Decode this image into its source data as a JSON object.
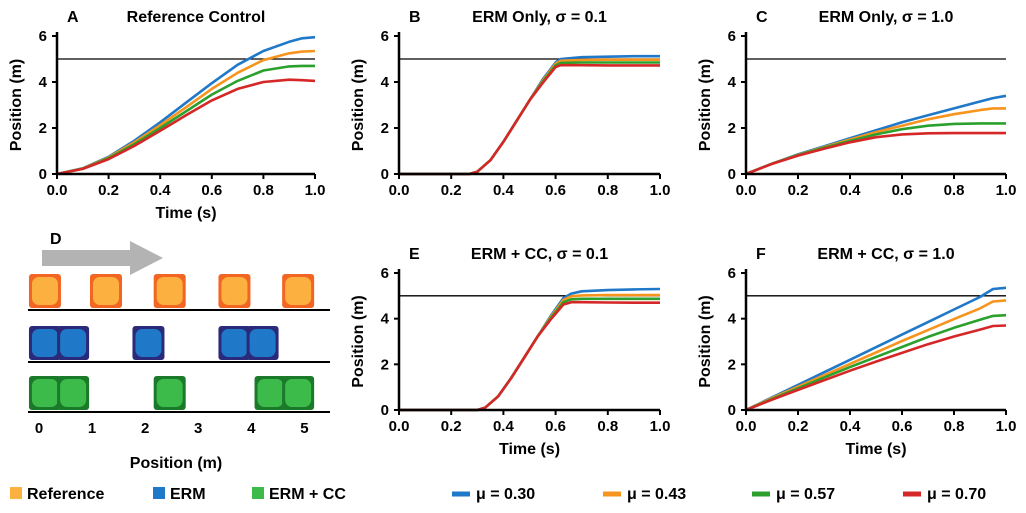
{
  "chart_data": [
    {
      "panel": "A",
      "title": "Reference Control",
      "type": "line",
      "xlabel": "Time (s)",
      "ylabel": "Position (m)",
      "xlim": [
        0,
        1
      ],
      "ylim": [
        0,
        6
      ],
      "xticks": [
        "0.0",
        "0.2",
        "0.4",
        "0.6",
        "0.8",
        "1.0"
      ],
      "yticks": [
        "0",
        "2",
        "4",
        "6"
      ],
      "reference_line": 5,
      "series": [
        {
          "ref": 0,
          "x": [
            0,
            0.1,
            0.2,
            0.3,
            0.4,
            0.5,
            0.6,
            0.7,
            0.8,
            0.9,
            0.95,
            1.0
          ],
          "y": [
            0,
            0.25,
            0.75,
            1.45,
            2.25,
            3.1,
            3.95,
            4.75,
            5.35,
            5.75,
            5.9,
            5.95
          ]
        },
        {
          "ref": 1,
          "x": [
            0,
            0.1,
            0.2,
            0.3,
            0.4,
            0.5,
            0.6,
            0.7,
            0.8,
            0.9,
            0.95,
            1.0
          ],
          "y": [
            0,
            0.24,
            0.72,
            1.38,
            2.12,
            2.9,
            3.7,
            4.4,
            4.95,
            5.25,
            5.32,
            5.35
          ]
        },
        {
          "ref": 2,
          "x": [
            0,
            0.1,
            0.2,
            0.3,
            0.4,
            0.5,
            0.6,
            0.7,
            0.8,
            0.9,
            0.95,
            1.0
          ],
          "y": [
            0,
            0.23,
            0.69,
            1.3,
            2.0,
            2.72,
            3.45,
            4.05,
            4.5,
            4.68,
            4.7,
            4.7
          ]
        },
        {
          "ref": 3,
          "x": [
            0,
            0.1,
            0.2,
            0.3,
            0.4,
            0.5,
            0.6,
            0.7,
            0.8,
            0.9,
            0.95,
            1.0
          ],
          "y": [
            0,
            0.22,
            0.65,
            1.22,
            1.88,
            2.55,
            3.2,
            3.7,
            4.0,
            4.1,
            4.08,
            4.05
          ]
        }
      ]
    },
    {
      "panel": "B",
      "title": "ERM Only, σ = 0.1",
      "type": "line",
      "xlabel": "",
      "ylabel": "Position (m)",
      "xlim": [
        0,
        1
      ],
      "ylim": [
        0,
        6
      ],
      "xticks": [
        "0.0",
        "0.2",
        "0.4",
        "0.6",
        "0.8",
        "1.0"
      ],
      "yticks": [
        "0",
        "2",
        "4",
        "6"
      ],
      "reference_line": 5,
      "series": [
        {
          "ref": 0,
          "x": [
            0,
            0.27,
            0.3,
            0.35,
            0.4,
            0.45,
            0.5,
            0.55,
            0.6,
            0.62,
            0.7,
            0.8,
            0.9,
            1.0
          ],
          "y": [
            0,
            0,
            0.1,
            0.6,
            1.4,
            2.3,
            3.2,
            4.1,
            4.85,
            5.0,
            5.08,
            5.1,
            5.12,
            5.12
          ]
        },
        {
          "ref": 1,
          "x": [
            0,
            0.27,
            0.3,
            0.35,
            0.4,
            0.45,
            0.5,
            0.55,
            0.6,
            0.62,
            0.7,
            0.8,
            0.9,
            1.0
          ],
          "y": [
            0,
            0,
            0.1,
            0.6,
            1.4,
            2.3,
            3.2,
            4.05,
            4.8,
            4.92,
            4.96,
            4.97,
            4.97,
            4.97
          ]
        },
        {
          "ref": 2,
          "x": [
            0,
            0.27,
            0.3,
            0.35,
            0.4,
            0.45,
            0.5,
            0.55,
            0.6,
            0.62,
            0.7,
            0.8,
            0.9,
            1.0
          ],
          "y": [
            0,
            0,
            0.1,
            0.6,
            1.4,
            2.3,
            3.2,
            4.0,
            4.72,
            4.83,
            4.85,
            4.85,
            4.85,
            4.85
          ]
        },
        {
          "ref": 3,
          "x": [
            0,
            0.27,
            0.3,
            0.35,
            0.4,
            0.45,
            0.5,
            0.55,
            0.6,
            0.62,
            0.7,
            0.8,
            0.9,
            1.0
          ],
          "y": [
            0,
            0,
            0.1,
            0.6,
            1.4,
            2.3,
            3.2,
            3.95,
            4.65,
            4.73,
            4.73,
            4.72,
            4.72,
            4.72
          ]
        }
      ]
    },
    {
      "panel": "C",
      "title": "ERM Only, σ = 1.0",
      "type": "line",
      "xlabel": "",
      "ylabel": "Position (m)",
      "xlim": [
        0,
        1
      ],
      "ylim": [
        0,
        6
      ],
      "xticks": [
        "0.0",
        "0.2",
        "0.4",
        "0.6",
        "0.8",
        "1.0"
      ],
      "yticks": [
        "0",
        "2",
        "4",
        "6"
      ],
      "reference_line": 5,
      "series": [
        {
          "ref": 0,
          "x": [
            0,
            0.1,
            0.2,
            0.3,
            0.4,
            0.5,
            0.6,
            0.7,
            0.8,
            0.9,
            0.95,
            1.0
          ],
          "y": [
            0,
            0.45,
            0.85,
            1.2,
            1.55,
            1.9,
            2.25,
            2.55,
            2.85,
            3.15,
            3.3,
            3.4
          ]
        },
        {
          "ref": 1,
          "x": [
            0,
            0.1,
            0.2,
            0.3,
            0.4,
            0.5,
            0.6,
            0.7,
            0.8,
            0.9,
            0.95,
            1.0
          ],
          "y": [
            0,
            0.45,
            0.83,
            1.17,
            1.5,
            1.82,
            2.1,
            2.38,
            2.6,
            2.78,
            2.85,
            2.85
          ]
        },
        {
          "ref": 2,
          "x": [
            0,
            0.1,
            0.2,
            0.3,
            0.4,
            0.5,
            0.6,
            0.7,
            0.8,
            0.9,
            0.95,
            1.0
          ],
          "y": [
            0,
            0.45,
            0.82,
            1.14,
            1.44,
            1.72,
            1.95,
            2.1,
            2.18,
            2.2,
            2.2,
            2.2
          ]
        },
        {
          "ref": 3,
          "x": [
            0,
            0.1,
            0.2,
            0.3,
            0.4,
            0.5,
            0.6,
            0.7,
            0.8,
            0.9,
            0.95,
            1.0
          ],
          "y": [
            0,
            0.44,
            0.8,
            1.1,
            1.38,
            1.6,
            1.72,
            1.77,
            1.78,
            1.78,
            1.78,
            1.78
          ]
        }
      ]
    },
    {
      "panel": "E",
      "title": "ERM + CC, σ = 0.1",
      "type": "line",
      "xlabel": "Time (s)",
      "ylabel": "Position (m)",
      "xlim": [
        0,
        1
      ],
      "ylim": [
        0,
        6
      ],
      "xticks": [
        "0.0",
        "0.2",
        "0.4",
        "0.6",
        "0.8",
        "1.0"
      ],
      "yticks": [
        "0",
        "2",
        "4",
        "6"
      ],
      "reference_line": 5,
      "series": [
        {
          "ref": 0,
          "x": [
            0,
            0.3,
            0.33,
            0.38,
            0.43,
            0.48,
            0.53,
            0.58,
            0.63,
            0.66,
            0.7,
            0.8,
            0.9,
            1.0
          ],
          "y": [
            0,
            0,
            0.1,
            0.6,
            1.4,
            2.3,
            3.2,
            4.1,
            4.9,
            5.1,
            5.2,
            5.25,
            5.28,
            5.3
          ]
        },
        {
          "ref": 1,
          "x": [
            0,
            0.3,
            0.33,
            0.38,
            0.43,
            0.48,
            0.53,
            0.58,
            0.63,
            0.66,
            0.7,
            0.8,
            0.9,
            1.0
          ],
          "y": [
            0,
            0,
            0.1,
            0.6,
            1.4,
            2.3,
            3.2,
            4.05,
            4.82,
            4.98,
            5.02,
            5.03,
            5.03,
            5.03
          ]
        },
        {
          "ref": 2,
          "x": [
            0,
            0.3,
            0.33,
            0.38,
            0.43,
            0.48,
            0.53,
            0.58,
            0.63,
            0.66,
            0.7,
            0.8,
            0.9,
            1.0
          ],
          "y": [
            0,
            0,
            0.1,
            0.6,
            1.4,
            2.3,
            3.2,
            4.0,
            4.72,
            4.85,
            4.87,
            4.87,
            4.87,
            4.87
          ]
        },
        {
          "ref": 3,
          "x": [
            0,
            0.3,
            0.33,
            0.38,
            0.43,
            0.48,
            0.53,
            0.58,
            0.63,
            0.66,
            0.7,
            0.8,
            0.9,
            1.0
          ],
          "y": [
            0,
            0,
            0.1,
            0.6,
            1.4,
            2.3,
            3.2,
            3.95,
            4.62,
            4.72,
            4.72,
            4.71,
            4.7,
            4.7
          ]
        }
      ]
    },
    {
      "panel": "F",
      "title": "ERM + CC, σ = 1.0",
      "type": "line",
      "xlabel": "Time (s)",
      "ylabel": "Position (m)",
      "xlim": [
        0,
        1
      ],
      "ylim": [
        0,
        6
      ],
      "xticks": [
        "0.0",
        "0.2",
        "0.4",
        "0.6",
        "0.8",
        "1.0"
      ],
      "yticks": [
        "0",
        "2",
        "4",
        "6"
      ],
      "reference_line": 5,
      "series": [
        {
          "ref": 0,
          "x": [
            0,
            0.1,
            0.2,
            0.3,
            0.4,
            0.5,
            0.6,
            0.7,
            0.8,
            0.9,
            0.95,
            1.0
          ],
          "y": [
            0,
            0.55,
            1.1,
            1.65,
            2.2,
            2.75,
            3.3,
            3.85,
            4.4,
            4.95,
            5.3,
            5.35
          ]
        },
        {
          "ref": 1,
          "x": [
            0,
            0.1,
            0.2,
            0.3,
            0.4,
            0.5,
            0.6,
            0.7,
            0.8,
            0.9,
            0.95,
            1.0
          ],
          "y": [
            0,
            0.52,
            1.02,
            1.52,
            2.02,
            2.52,
            3.02,
            3.5,
            3.98,
            4.45,
            4.75,
            4.8
          ]
        },
        {
          "ref": 2,
          "x": [
            0,
            0.1,
            0.2,
            0.3,
            0.4,
            0.5,
            0.6,
            0.7,
            0.8,
            0.9,
            0.95,
            1.0
          ],
          "y": [
            0,
            0.48,
            0.95,
            1.42,
            1.88,
            2.32,
            2.76,
            3.2,
            3.6,
            3.95,
            4.12,
            4.15
          ]
        },
        {
          "ref": 3,
          "x": [
            0,
            0.1,
            0.2,
            0.3,
            0.4,
            0.5,
            0.6,
            0.7,
            0.8,
            0.9,
            0.95,
            1.0
          ],
          "y": [
            0,
            0.45,
            0.88,
            1.3,
            1.72,
            2.12,
            2.5,
            2.88,
            3.22,
            3.52,
            3.68,
            3.7
          ]
        }
      ]
    }
  ],
  "mu_legend": [
    {
      "label": "μ = 0.30",
      "color": "#1f78c8"
    },
    {
      "label": "μ = 0.43",
      "color": "#f7941d"
    },
    {
      "label": "μ = 0.57",
      "color": "#2ca02c"
    },
    {
      "label": "μ = 0.70",
      "color": "#d62728"
    }
  ],
  "panel_d": {
    "letter": "D",
    "xlabel": "Position (m)",
    "xlim": [
      0,
      5.2
    ],
    "xticks": [
      "0",
      "1",
      "2",
      "3",
      "4",
      "5"
    ],
    "rows": [
      {
        "name": "reference",
        "fill": "#fbb040",
        "border": "#f26522",
        "blocks": [
          0.15,
          1.3,
          2.5,
          3.72,
          4.92
        ]
      },
      {
        "name": "erm",
        "fill": "#1f78c8",
        "border": "#2b2a7a",
        "blocks": [
          0.15,
          0.68,
          2.1,
          3.72,
          4.25
        ]
      },
      {
        "name": "erm-cc",
        "fill": "#3dbb4a",
        "border": "#1a7a2a",
        "blocks": [
          0.15,
          0.68,
          2.5,
          4.4,
          4.92
        ]
      }
    ]
  },
  "marker_legend": [
    {
      "label": "Reference",
      "color": "#fbb040"
    },
    {
      "label": "ERM",
      "color": "#1f78c8"
    },
    {
      "label": "ERM + CC",
      "color": "#3dbb4a"
    }
  ]
}
